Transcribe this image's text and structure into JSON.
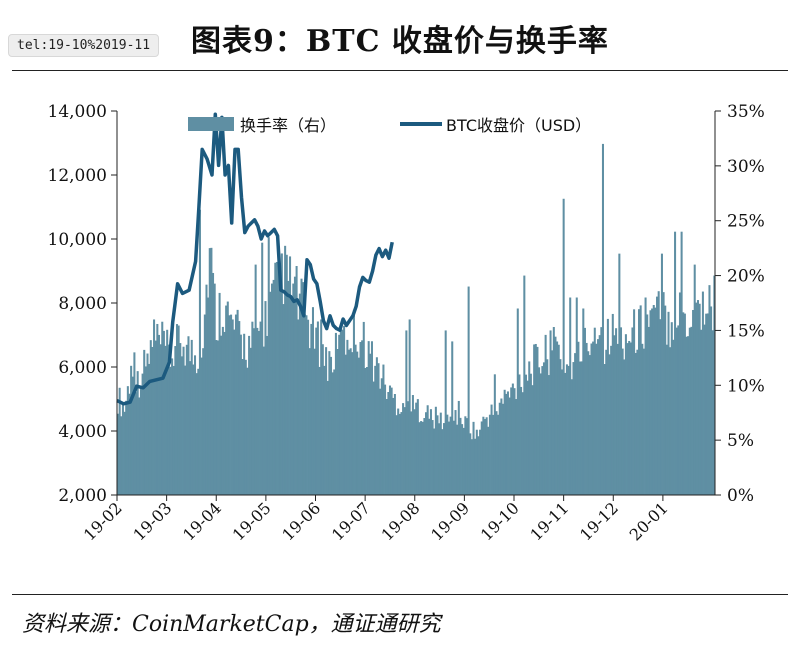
{
  "window": {
    "chip_text": "tel:19-10%2019-11"
  },
  "chart_data": {
    "type": "bar+line",
    "title": "图表9：BTC 收盘价与换手率",
    "source": "资料来源：CoinMarketCap，通证通研究",
    "x_tick_labels": [
      "19-02",
      "19-03",
      "19-04",
      "19-05",
      "19-06",
      "19-07",
      "19-08",
      "19-09",
      "19-10",
      "19-11",
      "19-12",
      "20-01"
    ],
    "y_left": {
      "ticks": [
        "2,000",
        "4,000",
        "6,000",
        "8,000",
        "10,000",
        "12,000",
        "14,000"
      ],
      "ylim": [
        2000,
        14000
      ]
    },
    "y_right": {
      "ticks": [
        "0%",
        "5%",
        "10%",
        "15%",
        "20%",
        "25%",
        "30%",
        "35%"
      ],
      "ylim": [
        0,
        35
      ]
    },
    "legend": {
      "placement": "top",
      "bar_label": "换手率（右）",
      "line_label": "BTC收盘价（USD）"
    },
    "colors": {
      "bar": "#5f8fa3",
      "line": "#1c5a7f"
    },
    "series": [
      {
        "name": "BTC收盘价（USD）",
        "axis": "left",
        "kind": "line",
        "points": [
          [
            0,
            4950
          ],
          [
            4,
            4850
          ],
          [
            8,
            4900
          ],
          [
            12,
            5400
          ],
          [
            16,
            5350
          ],
          [
            20,
            5550
          ],
          [
            24,
            5600
          ],
          [
            28,
            5650
          ],
          [
            32,
            6150
          ],
          [
            34,
            7400
          ],
          [
            37,
            8600
          ],
          [
            40,
            8300
          ],
          [
            44,
            8400
          ],
          [
            48,
            9300
          ],
          [
            50,
            11000
          ],
          [
            52,
            12800
          ],
          [
            55,
            12500
          ],
          [
            58,
            12000
          ],
          [
            60,
            13900
          ],
          [
            62,
            12300
          ],
          [
            64,
            13800
          ],
          [
            66,
            12000
          ],
          [
            68,
            12300
          ],
          [
            70,
            10500
          ],
          [
            72,
            12800
          ],
          [
            74,
            12800
          ],
          [
            76,
            11300
          ],
          [
            78,
            10200
          ],
          [
            80,
            10400
          ],
          [
            82,
            10500
          ],
          [
            84,
            10600
          ],
          [
            86,
            10400
          ],
          [
            88,
            10000
          ],
          [
            90,
            10250
          ],
          [
            92,
            10100
          ],
          [
            94,
            10200
          ],
          [
            96,
            10300
          ],
          [
            98,
            10100
          ],
          [
            100,
            8400
          ],
          [
            102,
            8350
          ],
          [
            104,
            8250
          ],
          [
            106,
            8200
          ],
          [
            108,
            8050
          ],
          [
            110,
            8100
          ],
          [
            112,
            7900
          ],
          [
            114,
            7600
          ],
          [
            116,
            9350
          ],
          [
            118,
            9200
          ],
          [
            120,
            8750
          ],
          [
            122,
            8600
          ],
          [
            124,
            8050
          ],
          [
            126,
            7450
          ],
          [
            128,
            7200
          ],
          [
            130,
            7600
          ],
          [
            132,
            7300
          ],
          [
            134,
            7200
          ],
          [
            136,
            7150
          ],
          [
            138,
            7500
          ],
          [
            140,
            7300
          ],
          [
            142,
            7450
          ],
          [
            144,
            7600
          ],
          [
            146,
            7900
          ],
          [
            148,
            8500
          ],
          [
            150,
            8800
          ],
          [
            152,
            8700
          ],
          [
            154,
            8650
          ],
          [
            156,
            9000
          ],
          [
            158,
            9500
          ],
          [
            160,
            9700
          ],
          [
            162,
            9450
          ],
          [
            164,
            9650
          ],
          [
            166,
            9400
          ],
          [
            168,
            9900
          ]
        ]
      },
      {
        "name": "换手率（右）",
        "axis": "right",
        "kind": "bar",
        "x_end_day": 365,
        "points": [
          [
            0,
            9.5
          ],
          [
            4,
            8.5
          ],
          [
            8,
            12
          ],
          [
            12,
            11
          ],
          [
            16,
            12.5
          ],
          [
            20,
            14
          ],
          [
            24,
            15
          ],
          [
            28,
            14.5
          ],
          [
            32,
            13.5
          ],
          [
            36,
            14.5
          ],
          [
            40,
            15
          ],
          [
            44,
            14
          ],
          [
            48,
            13.5
          ],
          [
            52,
            16
          ],
          [
            56,
            24
          ],
          [
            60,
            17
          ],
          [
            64,
            19
          ],
          [
            68,
            17
          ],
          [
            72,
            16
          ],
          [
            76,
            15
          ],
          [
            80,
            14.5
          ],
          [
            84,
            15.5
          ],
          [
            88,
            16.5
          ],
          [
            92,
            18
          ],
          [
            96,
            20
          ],
          [
            100,
            22
          ],
          [
            104,
            21
          ],
          [
            108,
            20
          ],
          [
            112,
            18.5
          ],
          [
            116,
            17
          ],
          [
            120,
            15.5
          ],
          [
            124,
            14
          ],
          [
            128,
            13
          ],
          [
            132,
            13.5
          ],
          [
            136,
            14.5
          ],
          [
            140,
            15.5
          ],
          [
            144,
            16
          ],
          [
            148,
            15.5
          ],
          [
            152,
            14.5
          ],
          [
            156,
            13
          ],
          [
            160,
            12
          ],
          [
            164,
            10.5
          ],
          [
            168,
            9.5
          ],
          [
            172,
            9
          ],
          [
            176,
            9
          ],
          [
            180,
            8.5
          ],
          [
            184,
            8.5
          ],
          [
            188,
            8
          ],
          [
            192,
            7.5
          ],
          [
            196,
            7.5
          ],
          [
            200,
            7
          ],
          [
            204,
            7.5
          ],
          [
            208,
            8
          ],
          [
            212,
            7
          ],
          [
            216,
            6.5
          ],
          [
            220,
            6
          ],
          [
            224,
            7.5
          ],
          [
            228,
            8
          ],
          [
            232,
            8.5
          ],
          [
            236,
            9.5
          ],
          [
            240,
            10
          ],
          [
            244,
            11
          ],
          [
            248,
            12
          ],
          [
            252,
            12.5
          ],
          [
            256,
            13
          ],
          [
            260,
            13.5
          ],
          [
            264,
            14
          ],
          [
            268,
            14.5
          ],
          [
            272,
            13
          ],
          [
            276,
            12.5
          ],
          [
            280,
            13
          ],
          [
            284,
            14.5
          ],
          [
            288,
            15
          ],
          [
            292,
            17
          ],
          [
            296,
            15
          ],
          [
            300,
            15.5
          ],
          [
            304,
            16
          ],
          [
            308,
            15.5
          ],
          [
            312,
            15.5
          ],
          [
            316,
            16
          ],
          [
            320,
            16.5
          ],
          [
            324,
            17
          ],
          [
            328,
            17.5
          ],
          [
            332,
            18
          ],
          [
            336,
            17
          ],
          [
            340,
            17.5
          ],
          [
            344,
            18
          ],
          [
            348,
            17
          ],
          [
            352,
            18
          ],
          [
            356,
            18.5
          ],
          [
            360,
            18.5
          ],
          [
            365,
            18.5
          ]
        ],
        "spikes": [
          [
            10,
            13
          ],
          [
            22,
            16
          ],
          [
            50,
            26
          ],
          [
            84,
            21
          ],
          [
            88,
            23
          ],
          [
            92,
            23.5
          ],
          [
            110,
            16
          ],
          [
            124,
            16
          ],
          [
            136,
            15
          ],
          [
            176,
            15
          ],
          [
            178,
            16
          ],
          [
            200,
            15
          ],
          [
            204,
            14
          ],
          [
            214,
            19
          ],
          [
            230,
            11
          ],
          [
            244,
            17
          ],
          [
            248,
            20
          ],
          [
            264,
            15
          ],
          [
            272,
            27
          ],
          [
            276,
            18
          ],
          [
            280,
            18
          ],
          [
            284,
            17
          ],
          [
            296,
            32
          ],
          [
            306,
            22
          ],
          [
            322,
            18
          ],
          [
            326,
            17
          ],
          [
            332,
            22
          ],
          [
            340,
            24
          ],
          [
            344,
            24
          ],
          [
            352,
            21
          ],
          [
            364,
            20
          ]
        ]
      }
    ]
  }
}
